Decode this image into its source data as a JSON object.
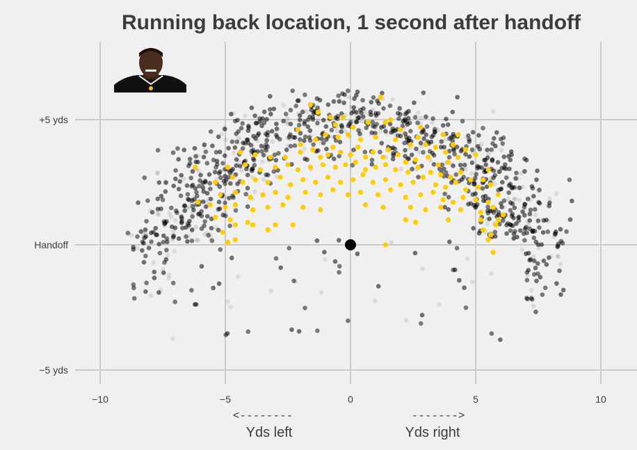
{
  "chart_data": {
    "type": "scatter",
    "title": "Running back location, 1 second after handoff",
    "xlim": [
      -11,
      11
    ],
    "ylim": [
      -5.5,
      9.7
    ],
    "x_ticks": [
      {
        "value": -10,
        "label": "−10"
      },
      {
        "value": -5,
        "label": "−5"
      },
      {
        "value": 0,
        "label": "0"
      },
      {
        "value": 5,
        "label": "5"
      },
      {
        "value": 10,
        "label": "10"
      }
    ],
    "y_ticks": [
      {
        "value": 5,
        "label": "+5 yds"
      },
      {
        "value": 0,
        "label": "Handoff"
      },
      {
        "value": -5,
        "label": "−5 yds"
      }
    ],
    "x_annotations": {
      "left_arrow": "<--------",
      "left_label": "Yds left",
      "right_arrow": "------->",
      "right_label": "Yds right"
    },
    "grid": true,
    "legend": "top-left",
    "colors": {
      "background": "#f0f0f0",
      "grid": "#cbcbcb",
      "all_backs": "#000000",
      "highlight": "#ffcc00",
      "handoff_marker": "#000000"
    },
    "handoff_point": {
      "x": 0,
      "y": 0
    },
    "series": [
      {
        "color": "#000000",
        "style": "translucent cloud of several thousand plays"
      },
      {
        "color": "#ffcc00",
        "points": [
          [
            1.2,
            5.9
          ],
          [
            -1.6,
            5.6
          ],
          [
            -0.8,
            5.1
          ],
          [
            -1.3,
            5.3
          ],
          [
            1.6,
            5.0
          ],
          [
            -0.3,
            5.1
          ],
          [
            -2.1,
            4.6
          ],
          [
            -0.6,
            4.8
          ],
          [
            0.1,
            4.7
          ],
          [
            0.7,
            4.9
          ],
          [
            1.4,
            4.9
          ],
          [
            2.0,
            4.6
          ],
          [
            2.8,
            4.7
          ],
          [
            3.7,
            4.4
          ],
          [
            4.1,
            4.0
          ],
          [
            4.3,
            4.4
          ],
          [
            -2.0,
            4.0
          ],
          [
            -1.4,
            4.2
          ],
          [
            -1.0,
            4.4
          ],
          [
            -0.5,
            4.3
          ],
          [
            -0.1,
            4.4
          ],
          [
            0.4,
            4.2
          ],
          [
            1.0,
            4.3
          ],
          [
            1.8,
            4.2
          ],
          [
            2.4,
            4.0
          ],
          [
            2.7,
            4.3
          ],
          [
            3.0,
            4.0
          ],
          [
            3.4,
            3.9
          ],
          [
            3.8,
            3.7
          ],
          [
            4.6,
            3.8
          ],
          [
            -4.4,
            3.7
          ],
          [
            -3.8,
            3.6
          ],
          [
            -3.2,
            3.5
          ],
          [
            -2.6,
            3.5
          ],
          [
            -2.0,
            3.7
          ],
          [
            -1.5,
            3.8
          ],
          [
            -1.2,
            3.5
          ],
          [
            -0.9,
            3.6
          ],
          [
            -0.7,
            3.9
          ],
          [
            -0.4,
            3.7
          ],
          [
            0.0,
            3.6
          ],
          [
            0.3,
            3.9
          ],
          [
            0.6,
            3.5
          ],
          [
            0.9,
            3.7
          ],
          [
            1.3,
            3.5
          ],
          [
            1.5,
            3.8
          ],
          [
            1.9,
            3.6
          ],
          [
            2.2,
            3.3
          ],
          [
            2.6,
            3.4
          ],
          [
            3.1,
            3.5
          ],
          [
            3.5,
            3.2
          ],
          [
            3.9,
            3.3
          ],
          [
            4.3,
            3.5
          ],
          [
            5.0,
            3.6
          ],
          [
            5.5,
            3.0
          ],
          [
            -4.9,
            3.1
          ],
          [
            -4.2,
            3.2
          ],
          [
            -3.6,
            3.0
          ],
          [
            -3.0,
            3.1
          ],
          [
            -2.5,
            3.2
          ],
          [
            -2.1,
            3.0
          ],
          [
            -1.6,
            3.1
          ],
          [
            -1.1,
            3.2
          ],
          [
            -0.6,
            3.1
          ],
          [
            -0.2,
            3.2
          ],
          [
            0.2,
            3.3
          ],
          [
            0.6,
            3.0
          ],
          [
            1.0,
            3.1
          ],
          [
            1.4,
            3.2
          ],
          [
            1.8,
            3.0
          ],
          [
            2.3,
            2.9
          ],
          [
            2.7,
            3.1
          ],
          [
            3.2,
            2.9
          ],
          [
            3.6,
            2.8
          ],
          [
            4.0,
            2.7
          ],
          [
            4.4,
            2.9
          ],
          [
            4.8,
            2.6
          ],
          [
            5.3,
            2.6
          ],
          [
            -5.4,
            2.5
          ],
          [
            -4.7,
            2.7
          ],
          [
            -4.3,
            2.5
          ],
          [
            -3.8,
            2.6
          ],
          [
            -3.3,
            2.5
          ],
          [
            -2.8,
            2.7
          ],
          [
            -2.4,
            2.4
          ],
          [
            -1.9,
            2.6
          ],
          [
            -1.4,
            2.5
          ],
          [
            -0.9,
            2.7
          ],
          [
            -0.4,
            2.5
          ],
          [
            0.1,
            2.6
          ],
          [
            0.5,
            2.8
          ],
          [
            0.9,
            2.5
          ],
          [
            1.4,
            2.6
          ],
          [
            2.0,
            2.4
          ],
          [
            2.5,
            2.5
          ],
          [
            2.9,
            2.7
          ],
          [
            3.4,
            2.4
          ],
          [
            3.8,
            2.3
          ],
          [
            4.2,
            2.5
          ],
          [
            4.6,
            2.2
          ],
          [
            5.1,
            2.3
          ],
          [
            5.6,
            2.4
          ],
          [
            -5.2,
            2.0
          ],
          [
            -4.6,
            2.1
          ],
          [
            -4.0,
            1.9
          ],
          [
            -3.5,
            2.0
          ],
          [
            -3.0,
            2.1
          ],
          [
            -2.5,
            1.9
          ],
          [
            -1.8,
            2.1
          ],
          [
            -1.2,
            2.0
          ],
          [
            -0.7,
            2.2
          ],
          [
            -0.1,
            2.0
          ],
          [
            0.4,
            2.1
          ],
          [
            1.1,
            2.0
          ],
          [
            1.6,
            2.2
          ],
          [
            2.2,
            1.9
          ],
          [
            2.8,
            2.0
          ],
          [
            3.3,
            2.1
          ],
          [
            3.7,
            1.8
          ],
          [
            4.1,
            1.7
          ],
          [
            4.5,
            1.9
          ],
          [
            5.0,
            1.8
          ],
          [
            5.5,
            1.7
          ],
          [
            5.9,
            2.0
          ],
          [
            -6.1,
            1.7
          ],
          [
            -5.6,
            1.6
          ],
          [
            -5.0,
            1.5
          ],
          [
            -4.6,
            1.6
          ],
          [
            -3.9,
            1.4
          ],
          [
            -3.3,
            1.5
          ],
          [
            -2.7,
            1.6
          ],
          [
            -1.9,
            1.5
          ],
          [
            -1.2,
            1.4
          ],
          [
            0.6,
            1.6
          ],
          [
            1.3,
            1.5
          ],
          [
            2.4,
            1.5
          ],
          [
            3.0,
            1.4
          ],
          [
            3.6,
            1.5
          ],
          [
            4.4,
            1.4
          ],
          [
            5.2,
            1.3
          ],
          [
            5.7,
            1.5
          ],
          [
            6.1,
            1.2
          ],
          [
            -5.4,
            1.1
          ],
          [
            -4.8,
            1.0
          ],
          [
            -4.1,
            0.9
          ],
          [
            -3.0,
            0.8
          ],
          [
            2.2,
            1.0
          ],
          [
            2.6,
            0.9
          ],
          [
            3.9,
            1.0
          ],
          [
            5.2,
            1.0
          ],
          [
            5.8,
            0.8
          ],
          [
            -4.6,
            0.8
          ],
          [
            -3.9,
            0.8
          ],
          [
            -2.3,
            0.8
          ],
          [
            -5.1,
            0.5
          ],
          [
            -3.3,
            0.6
          ],
          [
            5.3,
            0.6
          ],
          [
            5.6,
            0.4
          ],
          [
            -4.6,
            0.2
          ],
          [
            5.5,
            0.2
          ],
          [
            -4.9,
            0.1
          ],
          [
            5.7,
            -0.3
          ],
          [
            1.4,
            0.0
          ],
          [
            -6.2,
            3.1
          ],
          [
            5.9,
            1.0
          ]
        ]
      }
    ]
  }
}
